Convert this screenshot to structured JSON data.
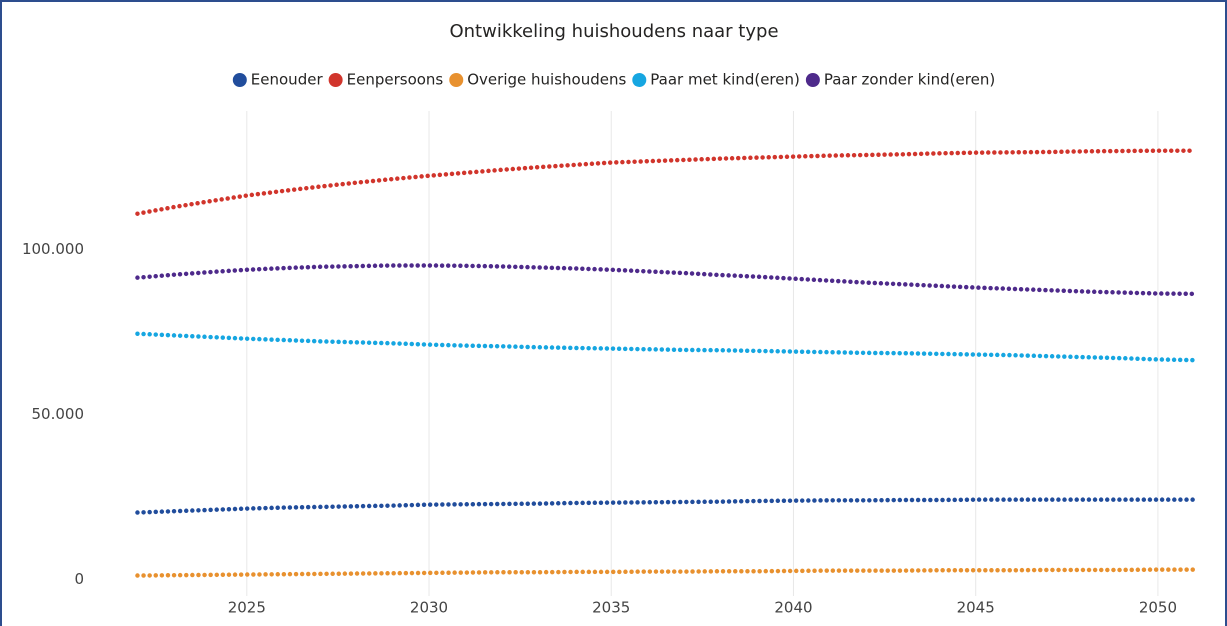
{
  "chart_data": {
    "type": "line",
    "title": "Ontwikkeling huishoudens naar type",
    "x": [
      2022,
      2023,
      2024,
      2025,
      2026,
      2027,
      2028,
      2029,
      2030,
      2031,
      2032,
      2033,
      2034,
      2035,
      2036,
      2037,
      2038,
      2039,
      2040,
      2041,
      2042,
      2043,
      2044,
      2045,
      2046,
      2047,
      2048,
      2049,
      2050,
      2051
    ],
    "series": [
      {
        "name": "Eenouder",
        "color": "#214d9c",
        "values": [
          20300,
          20700,
          21100,
          21500,
          21800,
          22000,
          22200,
          22400,
          22700,
          22800,
          22900,
          23000,
          23200,
          23300,
          23400,
          23500,
          23600,
          23800,
          23900,
          24000,
          24000,
          24100,
          24100,
          24200,
          24200,
          24200,
          24200,
          24200,
          24200,
          24200
        ]
      },
      {
        "name": "Eenpersoons",
        "color": "#d1352c",
        "values": [
          110900,
          112900,
          114700,
          116400,
          117800,
          119100,
          120300,
          121400,
          122400,
          123300,
          124200,
          125000,
          125700,
          126400,
          126800,
          127200,
          127600,
          127900,
          128200,
          128500,
          128700,
          128900,
          129200,
          129400,
          129500,
          129600,
          129800,
          129900,
          130000,
          130000
        ]
      },
      {
        "name": "Overige huishoudens",
        "color": "#e8912f",
        "values": [
          1200,
          1300,
          1400,
          1500,
          1600,
          1700,
          1800,
          1900,
          2000,
          2100,
          2200,
          2200,
          2300,
          2300,
          2400,
          2400,
          2500,
          2500,
          2600,
          2700,
          2700,
          2700,
          2800,
          2800,
          2800,
          2900,
          2900,
          2900,
          3000,
          3000
        ]
      },
      {
        "name": "Paar met kind(eren)",
        "color": "#16a6e1",
        "values": [
          74500,
          74000,
          73500,
          73000,
          72600,
          72200,
          71900,
          71600,
          71200,
          70900,
          70700,
          70400,
          70200,
          70000,
          69800,
          69600,
          69500,
          69300,
          69100,
          68900,
          68700,
          68600,
          68400,
          68200,
          68000,
          67700,
          67400,
          67100,
          66700,
          66500
        ]
      },
      {
        "name": "Paar zonder kind(eren)",
        "color": "#4e2a8b",
        "values": [
          91500,
          92400,
          93200,
          93900,
          94400,
          94800,
          95000,
          95200,
          95200,
          95100,
          94900,
          94600,
          94300,
          93900,
          93400,
          92900,
          92300,
          91800,
          91200,
          90600,
          90000,
          89500,
          89000,
          88500,
          88100,
          87700,
          87300,
          87000,
          86700,
          86600
        ]
      }
    ],
    "xlim": [
      2021.85,
      2051.1
    ],
    "xticks": [
      2025,
      2030,
      2035,
      2040,
      2045,
      2050
    ],
    "ylim": [
      -5000,
      139000
    ],
    "yticks": [
      0,
      {
        "value": 50000,
        "label": "50.000"
      },
      {
        "value": 100000,
        "label": "100.000"
      }
    ],
    "grid": "x",
    "legend": "top"
  }
}
